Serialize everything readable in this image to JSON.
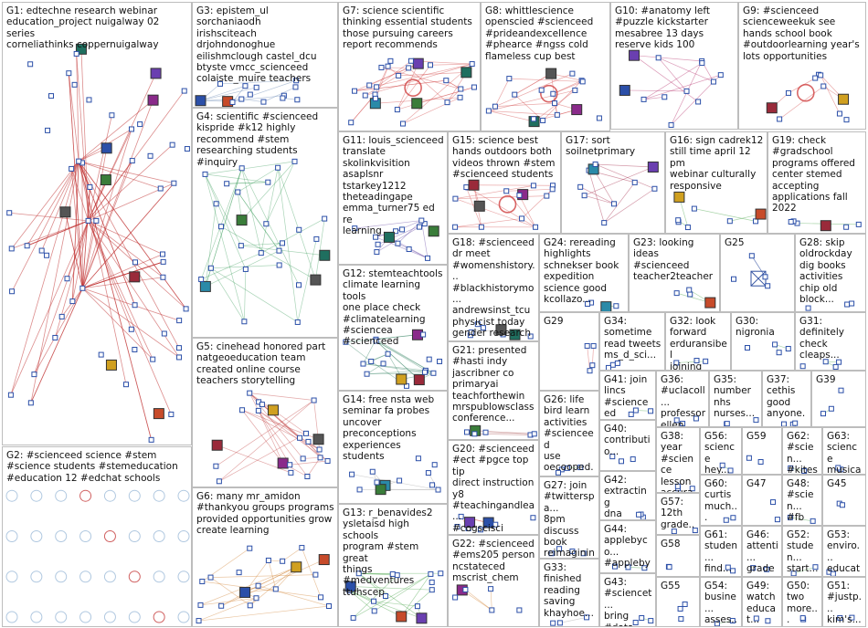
{
  "panels": [
    {
      "id": "G1",
      "label": "G1: edtechne research webinar\neducation_project nuigalway 02 series\ncorneliathinks coppernuigalway",
      "color": "#c03030",
      "seed": 1,
      "nodes": 60,
      "edges": 85,
      "hub": true
    },
    {
      "id": "G2",
      "label": "G2: #scienceed science #stem\n#science students #stemeducation\n#education 12 #edchat schools",
      "color": "#b0c8e0",
      "seed": 2,
      "nodes": 32,
      "edges": 0,
      "grid": true
    },
    {
      "id": "G3",
      "label": "G3: epistem_ul sorchaniaodh\nirishsciteach\ndrjohndonoghue\neilishmclough castel_dcu\nbtyste vmcc_scienceed\ncolaiste_muire teachers",
      "color": "#6080b0",
      "seed": 3,
      "nodes": 14,
      "edges": 14
    },
    {
      "id": "G4",
      "label": "G4: scientific #scienceed\nkispride #k12 highly\nrecommend #stem\nresearching students #inquiry",
      "color": "#40a060",
      "seed": 4,
      "nodes": 28,
      "edges": 34
    },
    {
      "id": "G5",
      "label": "G5: cinehead honored part\nnatgeoeducation team\ncreated online course\nteachers storytelling",
      "color": "#c04040",
      "seed": 5,
      "nodes": 22,
      "edges": 28
    },
    {
      "id": "G6",
      "label": "G6: many mr_amidon\n#thankyou groups programs\nprovided opportunities grow\ncreate learning",
      "color": "#d08030",
      "seed": 6,
      "nodes": 20,
      "edges": 24
    },
    {
      "id": "G7",
      "label": "G7: science scientific\nthinking essential students\nthose pursuing careers\nreport recommends",
      "color": "#d04040",
      "seed": 7,
      "nodes": 26,
      "edges": 32,
      "loop": true
    },
    {
      "id": "G8",
      "label": "G8: whittlescience\nopenscied #scienceed\n#prideandexcellence\n#phearce #ngss cold\nflameless cup best",
      "color": "#d04040",
      "seed": 8,
      "nodes": 18,
      "edges": 22,
      "loop": true
    },
    {
      "id": "G9",
      "label": "G9: #scienceed\nscienceweekuk see\nhands school book\n#outdoorlearning year's\nlots opportunities",
      "color": "#d04040",
      "seed": 9,
      "nodes": 10,
      "edges": 9,
      "loop": true
    },
    {
      "id": "G10",
      "label": "G10: #anatomy left\n#puzzle kickstarter\nmesabree 13 days\nreserve kids 100",
      "color": "#b02060",
      "seed": 10,
      "nodes": 12,
      "edges": 12
    },
    {
      "id": "G11",
      "label": "G11: louis_scienceed\ntranslate\nskolinkvisition\nasaplsnr tstarkey1212\ntheteadingape\nemma_turner75 ed re\nlearning",
      "color": "#6040a0",
      "seed": 11,
      "nodes": 14,
      "edges": 14
    },
    {
      "id": "G12",
      "label": "G12: stemteachtools\nclimate learning tools\none place check\n#climatelearning\n#sciencea #scienceed",
      "color": "#308060",
      "seed": 12,
      "nodes": 18,
      "edges": 24
    },
    {
      "id": "G13",
      "label": "G13: r_benavides2\nysletaisd high schools\nprogram #stem great\nthings #medventures\nttuhscep",
      "color": "#40a040",
      "seed": 13,
      "nodes": 16,
      "edges": 20
    },
    {
      "id": "G14",
      "label": "G14: free nsta web\nseminar fa probes\nuncover\npreconceptions\nexperiences students",
      "color": "#a0a0a0",
      "seed": 14,
      "nodes": 12,
      "edges": 8
    },
    {
      "id": "G15",
      "label": "G15: science best\nhands outdoors both\nvideos thrown #stem\n#scienceed students",
      "color": "#d04040",
      "seed": 15,
      "nodes": 16,
      "edges": 16,
      "loop": true
    },
    {
      "id": "G16",
      "label": "G16: sign cadrek12\nstill time april 12 pm\nwebinar culturally\nresponsive",
      "color": "#40a040",
      "seed": 16,
      "nodes": 8,
      "edges": 6
    },
    {
      "id": "G17",
      "label": "G17: sort\nsoilnetprimary",
      "color": "#a02040",
      "seed": 17,
      "nodes": 10,
      "edges": 10
    },
    {
      "id": "G18",
      "label": "G18: #scienceed\ndr meet\n#womenshistory...\n#blackhistorymo...\nandrewsinst_tcu\nphysicist today\ngender research",
      "color": "#a0a0a0",
      "seed": 18,
      "nodes": 8,
      "edges": 4
    },
    {
      "id": "G19",
      "label": "G19: check\n#gradschool\nprograms offered\ncenter stemed\naccepting\napplications fall\n2022",
      "color": "#40a040",
      "seed": 19,
      "nodes": 6,
      "edges": 3
    },
    {
      "id": "G20",
      "label": "G20: #scienceed\n#ect #pgce top tip\ndirect instruction\ny8\n#teachingandlea...\n#cogscisci",
      "color": "#d04040",
      "seed": 20,
      "nodes": 8,
      "edges": 6
    },
    {
      "id": "G21",
      "label": "G21: presented\n#hasti indy\njascribner co\nprimaryai\nteachforthewin\nmrspublowsclass\nconference...",
      "color": "#a04040",
      "seed": 21,
      "nodes": 6,
      "edges": 4
    },
    {
      "id": "G22",
      "label": "G22: #scienceed\n#ems205 person\nncstateced\nmscrist_chem",
      "color": "#d08030",
      "seed": 22,
      "nodes": 6,
      "edges": 5
    },
    {
      "id": "G23",
      "label": "G23: looking\nideas #scienceed\nteacher2teacher",
      "color": "#40a040",
      "seed": 23,
      "nodes": 4,
      "edges": 2
    },
    {
      "id": "G24",
      "label": "G24: rereading\nhighlights\nschnekser book\nexpedition\nscience good\nkcollazo...",
      "color": "#40a040",
      "seed": 24,
      "nodes": 4,
      "edges": 2
    },
    {
      "id": "G25",
      "label": "G25",
      "color": "#3050a0",
      "seed": 25,
      "nodes": 4,
      "edges": 3,
      "cross": true
    },
    {
      "id": "G26",
      "label": "G26: life\nbird learn\nactivities\n#scienceed\nuse\noecooped...",
      "color": "#40a040",
      "seed": 26,
      "nodes": 4,
      "edges": 2
    },
    {
      "id": "G27",
      "label": "G27: join\n#twitterspa...\n8pm\ndiscuss\nbook\nreimaginin...",
      "color": "#40a040",
      "seed": 27,
      "nodes": 4,
      "edges": 2
    },
    {
      "id": "G28",
      "label": "G28: skip\noldrockday\ndig books\nactivities\nchip old\nblock...",
      "color": "#a0a0a0",
      "seed": 28,
      "nodes": 3,
      "edges": 1
    },
    {
      "id": "G29",
      "label": "G29",
      "color": "#d04040",
      "seed": 29,
      "nodes": 4,
      "edges": 3
    },
    {
      "id": "G30",
      "label": "G30:\nnigronia",
      "color": "#40a040",
      "seed": 30,
      "nodes": 4,
      "edges": 2
    },
    {
      "id": "G31",
      "label": "G31:\ndefinitely\ncheck\ncleaps...",
      "color": "#40a040",
      "seed": 31,
      "nodes": 4,
      "edges": 2
    },
    {
      "id": "G32",
      "label": "G32: look\nforward\nerduransibel\njoining later...",
      "color": "#40a040",
      "seed": 32,
      "nodes": 3,
      "edges": 1
    },
    {
      "id": "G33",
      "label": "G33:\nfinished\nreading\nsaving\nkhayhoe...",
      "color": "#a0a0a0",
      "seed": 33,
      "nodes": 3,
      "edges": 1
    },
    {
      "id": "G34",
      "label": "G34:\nsometime\nread tweets\nms_d_sci...",
      "color": "#40a040",
      "seed": 34,
      "nodes": 3,
      "edges": 1
    },
    {
      "id": "G35",
      "label": "G35:\nnumber\nnhs\nnurses...",
      "color": "#a0a0a0",
      "seed": 35,
      "nodes": 3,
      "edges": 1
    },
    {
      "id": "G36",
      "label": "G36:\n#uclacoll...\nprofessor\nellen...",
      "color": "#40a040",
      "seed": 36,
      "nodes": 3,
      "edges": 1
    },
    {
      "id": "G37",
      "label": "G37:\ncethis\ngood\nanyone...",
      "color": "#a0a0a0",
      "seed": 37,
      "nodes": 3,
      "edges": 1
    },
    {
      "id": "G38",
      "label": "G38:\nyear\n#science\nlesson\naccura...",
      "color": "#40a040",
      "seed": 38,
      "nodes": 3,
      "edges": 1
    },
    {
      "id": "G39",
      "label": "G39",
      "color": "#40a040",
      "seed": 39,
      "nodes": 3,
      "edges": 1
    },
    {
      "id": "G40",
      "label": "G40:\ncontributio...",
      "color": "#40a040",
      "seed": 40,
      "nodes": 3,
      "edges": 1
    },
    {
      "id": "G41",
      "label": "G41: join\nlincs\n#scienceed\ncommunit...",
      "color": "#40a040",
      "seed": 41,
      "nodes": 3,
      "edges": 1
    },
    {
      "id": "G42",
      "label": "G42:\nextracting\ndna saliva\ncool...",
      "color": "#a0a0a0",
      "seed": 42,
      "nodes": 3,
      "edges": 1
    },
    {
      "id": "G43",
      "label": "G43:\n#sciencet...\nbring #data\nclassroom...",
      "color": "#40a040",
      "seed": 43,
      "nodes": 3,
      "edges": 1
    },
    {
      "id": "G44",
      "label": "G44:\napplebyco...\n#applebyc...\n#sciencee...",
      "color": "#40a040",
      "seed": 44,
      "nodes": 3,
      "edges": 1
    },
    {
      "id": "G45",
      "label": "G45",
      "color": "#40a040",
      "seed": 45,
      "nodes": 2,
      "edges": 1
    },
    {
      "id": "G46",
      "label": "G46:\nattenti...\ngrades...",
      "color": "#40a040",
      "seed": 46,
      "nodes": 2,
      "edges": 1
    },
    {
      "id": "G47",
      "label": "G47",
      "color": "#40a040",
      "seed": 47,
      "nodes": 2,
      "edges": 1
    },
    {
      "id": "G48",
      "label": "G48:\n#scien...\n#fb",
      "color": "#40a040",
      "seed": 48,
      "nodes": 2,
      "edges": 1
    },
    {
      "id": "G49",
      "label": "G49:\nwatch\neducat...",
      "color": "#40a040",
      "seed": 49,
      "nodes": 2,
      "edges": 1
    },
    {
      "id": "G50",
      "label": "G50:\ntwo\nmore...",
      "color": "#40a040",
      "seed": 50,
      "nodes": 2,
      "edges": 1
    },
    {
      "id": "G51",
      "label": "G51:\n#justp...\nkim's...",
      "color": "#40a040",
      "seed": 51,
      "nodes": 2,
      "edges": 1
    },
    {
      "id": "G52",
      "label": "G52:\nstuden...\nstart...",
      "color": "#40a040",
      "seed": 52,
      "nodes": 2,
      "edges": 1
    },
    {
      "id": "G53",
      "label": "G53:\nenviro...\neducat...",
      "color": "#40a040",
      "seed": 53,
      "nodes": 2,
      "edges": 1
    },
    {
      "id": "G54",
      "label": "G54:\nbusine...\nasses...",
      "color": "#40a040",
      "seed": 54,
      "nodes": 2,
      "edges": 1
    },
    {
      "id": "G55",
      "label": "G55",
      "color": "#40a040",
      "seed": 55,
      "nodes": 3,
      "edges": 1
    },
    {
      "id": "G56",
      "label": "G56:\nscience\nhey...",
      "color": "#40a040",
      "seed": 56,
      "nodes": 2,
      "edges": 1
    },
    {
      "id": "G57",
      "label": "G57:\n12th\ngrade...",
      "color": "#40a040",
      "seed": 57,
      "nodes": 2,
      "edges": 1
    },
    {
      "id": "G58",
      "label": "G58",
      "color": "#40a040",
      "seed": 58,
      "nodes": 2,
      "edges": 1
    },
    {
      "id": "G59",
      "label": "G59",
      "color": "#40a040",
      "seed": 59,
      "nodes": 2,
      "edges": 1
    },
    {
      "id": "G60",
      "label": "G60:\ncurtis\nmuch...",
      "color": "#40a040",
      "seed": 60,
      "nodes": 2,
      "edges": 1
    },
    {
      "id": "G61",
      "label": "G61:\nstuden...\nfind...",
      "color": "#40a040",
      "seed": 61,
      "nodes": 2,
      "edges": 1
    },
    {
      "id": "G62",
      "label": "G62:\n#scien...\n#kitesi...",
      "color": "#40a040",
      "seed": 62,
      "nodes": 2,
      "edges": 1
    },
    {
      "id": "G63",
      "label": "G63:\nscience\nmusical",
      "color": "#40a040",
      "seed": 63,
      "nodes": 2,
      "edges": 1
    }
  ]
}
